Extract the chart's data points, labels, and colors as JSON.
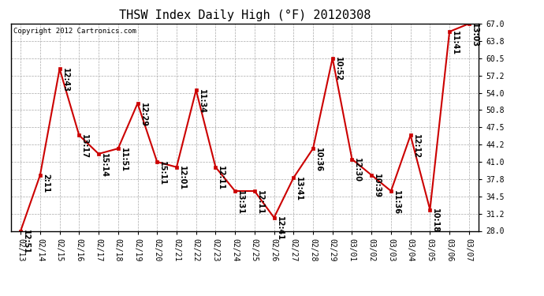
{
  "title": "THSW Index Daily High (°F) 20120308",
  "copyright": "Copyright 2012 Cartronics.com",
  "dates": [
    "02/13",
    "02/14",
    "02/15",
    "02/16",
    "02/17",
    "02/18",
    "02/19",
    "02/20",
    "02/21",
    "02/22",
    "02/23",
    "02/24",
    "02/25",
    "02/26",
    "02/27",
    "02/28",
    "02/29",
    "03/01",
    "03/02",
    "03/03",
    "03/04",
    "03/05",
    "03/06",
    "03/07"
  ],
  "values": [
    28.0,
    38.5,
    58.5,
    46.0,
    42.5,
    43.5,
    52.0,
    41.0,
    40.0,
    54.5,
    40.0,
    35.5,
    35.5,
    30.5,
    38.0,
    43.5,
    60.5,
    41.5,
    38.5,
    35.5,
    46.0,
    32.0,
    65.5,
    67.0
  ],
  "labels": [
    "12:51",
    "2:11",
    "12:43",
    "13:17",
    "15:14",
    "11:51",
    "12:29",
    "15:11",
    "12:01",
    "11:34",
    "12:11",
    "13:31",
    "12:11",
    "12:41",
    "13:41",
    "10:36",
    "10:52",
    "12:30",
    "10:39",
    "11:36",
    "12:12",
    "10:18",
    "11:41",
    "13:03"
  ],
  "line_color": "#cc0000",
  "marker_color": "#cc0000",
  "bg_color": "#ffffff",
  "grid_color": "#aaaaaa",
  "ylim": [
    28.0,
    67.0
  ],
  "yticks": [
    28.0,
    31.2,
    34.5,
    37.8,
    41.0,
    44.2,
    47.5,
    50.8,
    54.0,
    57.2,
    60.5,
    63.8,
    67.0
  ],
  "title_fontsize": 11,
  "label_fontsize": 7,
  "tick_fontsize": 7,
  "copyright_fontsize": 6.5
}
